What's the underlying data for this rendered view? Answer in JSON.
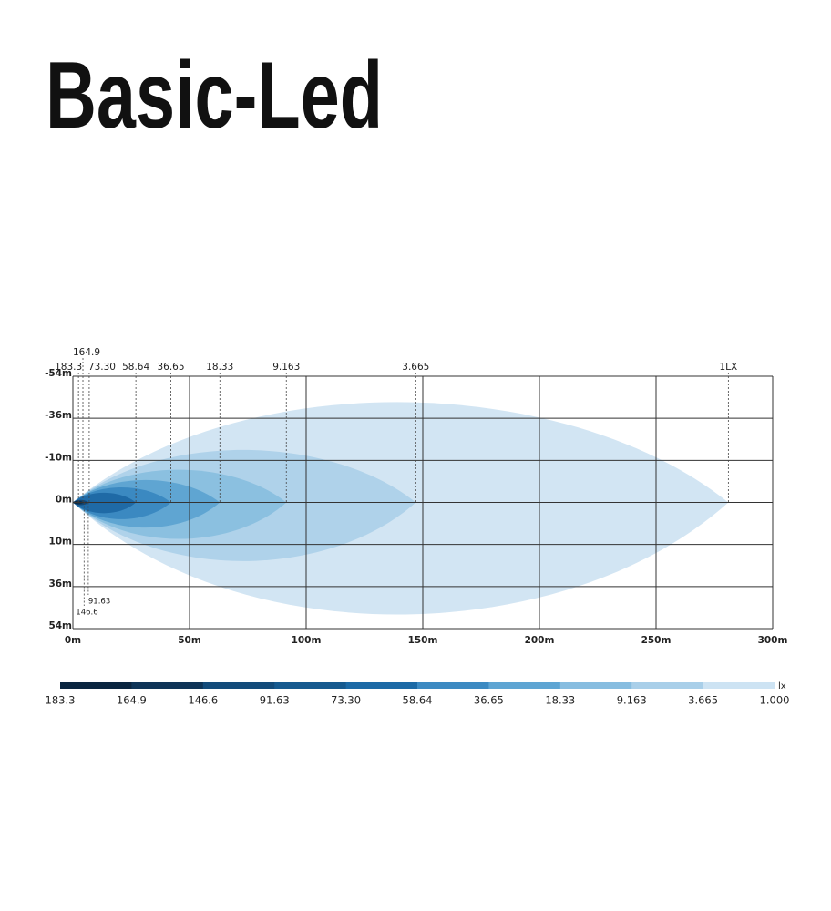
{
  "title": "Basic-Led",
  "chart_data": {
    "type": "isolux",
    "xlim": [
      0,
      300
    ],
    "xticks": [
      {
        "value": 0,
        "label": "0m"
      },
      {
        "value": 50,
        "label": "50m"
      },
      {
        "value": 100,
        "label": "100m"
      },
      {
        "value": 150,
        "label": "150m"
      },
      {
        "value": 200,
        "label": "200m"
      },
      {
        "value": 250,
        "label": "250m"
      },
      {
        "value": 300,
        "label": "300m"
      }
    ],
    "ycategories": [
      "-54m",
      "-36m",
      "-10m",
      "0m",
      "10m",
      "36m",
      "54m"
    ],
    "grid": true,
    "series": [
      {
        "name": "1LX",
        "color": "#d2e5f3",
        "values": [
          281
        ]
      },
      {
        "name": "3.665",
        "color": "#afd2ea",
        "values": [
          147
        ]
      },
      {
        "name": "9.163",
        "color": "#8bc0e0",
        "values": [
          91.5
        ]
      },
      {
        "name": "18.33",
        "color": "#5fa5d2",
        "values": [
          63
        ]
      },
      {
        "name": "36.65",
        "color": "#3b89c1",
        "values": [
          42
        ]
      },
      {
        "name": "58.64",
        "color": "#1f6aa6",
        "values": [
          27
        ]
      },
      {
        "name": "73.30",
        "color": "#17588f",
        "values": [
          7
        ]
      },
      {
        "name": "91.63",
        "color": "#124775",
        "values": [
          6.6
        ]
      },
      {
        "name": "146.6",
        "color": "#0e3a60",
        "values": [
          4.8
        ]
      },
      {
        "name": "164.9",
        "color": "#0b2e4e",
        "values": [
          4.3
        ]
      },
      {
        "name": "183.3",
        "color": "#08213a",
        "values": [
          2.4
        ]
      }
    ]
  },
  "colorbar": {
    "unit": "lx",
    "labels": [
      "183.3",
      "164.9",
      "146.6",
      "91.63",
      "73.30",
      "58.64",
      "36.65",
      "18.33",
      "9.163",
      "3.665",
      "1.000"
    ],
    "colors": [
      "#0a2540",
      "#0e3457",
      "#134b7a",
      "#165a8f",
      "#1c6aa6",
      "#3c8ac2",
      "#5ea5d3",
      "#87bde0",
      "#a9cfe9",
      "#cde3f3"
    ]
  }
}
